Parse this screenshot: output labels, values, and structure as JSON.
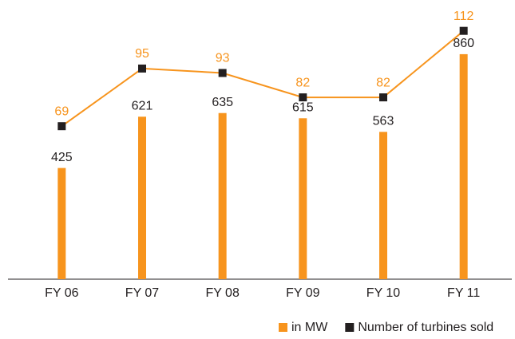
{
  "chart_data": {
    "type": "bar_line",
    "categories": [
      "FY 06",
      "FY 07",
      "FY 08",
      "FY 09",
      "FY 10",
      "FY 11"
    ],
    "series": [
      {
        "name": "in MW",
        "type": "bar",
        "color": "#f7941d",
        "values": [
          425,
          621,
          635,
          615,
          563,
          860
        ]
      },
      {
        "name": "Number of turbines sold",
        "type": "line",
        "axis": "y2",
        "color": "#231f20",
        "line_color": "#f7941d",
        "label_color": "#f7941d",
        "values": [
          69,
          95,
          93,
          82,
          82,
          112
        ]
      }
    ],
    "ylim": [
      0,
      1000
    ],
    "y2lim": [
      0,
      118
    ],
    "legend": "bottom-right"
  }
}
